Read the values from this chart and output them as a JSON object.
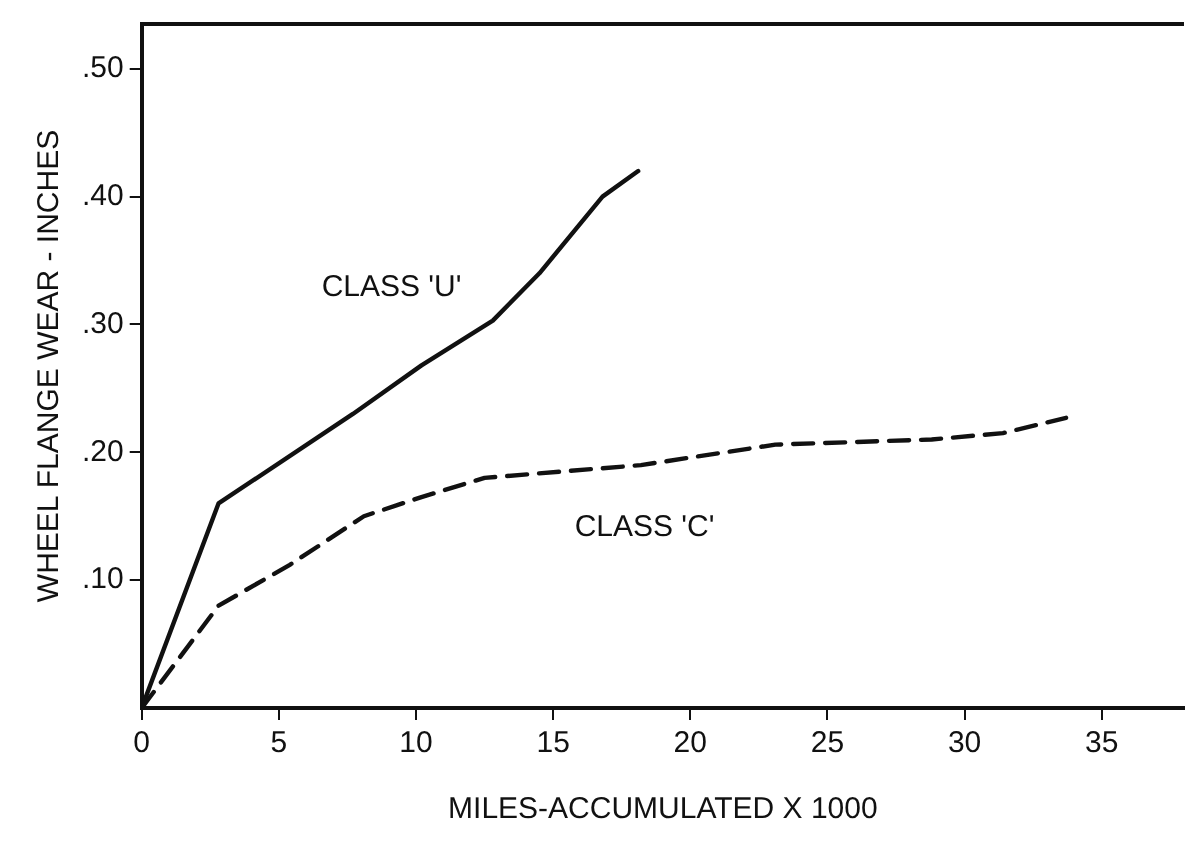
{
  "chart_data": {
    "type": "line",
    "xlabel": "MILES-ACCUMULATED X 1000",
    "ylabel": "WHEEL FLANGE WEAR - INCHES",
    "xlim": [
      0,
      38
    ],
    "xticks": [
      0,
      5,
      10,
      15,
      20,
      25,
      30,
      35
    ],
    "ylim": [
      0,
      0.535
    ],
    "yticks": [
      {
        "value": 0.1,
        "label": ".10"
      },
      {
        "value": 0.2,
        "label": ".20"
      },
      {
        "value": 0.3,
        "label": ".30"
      },
      {
        "value": 0.4,
        "label": ".40"
      },
      {
        "value": 0.5,
        "label": ".50"
      }
    ],
    "grid": false,
    "legend": false,
    "marker": "none",
    "series": [
      {
        "name": "CLASS 'U'",
        "color": "#111111",
        "line_style": "solid",
        "x": [
          0,
          2.8,
          7.7,
          10.2,
          12.8,
          14.5,
          16.8,
          18.1
        ],
        "values": [
          0,
          0.16,
          0.23,
          0.268,
          0.303,
          0.34,
          0.4,
          0.42
        ]
      },
      {
        "name": "CLASS 'C'",
        "color": "#111111",
        "line_style": "dashed",
        "x": [
          0,
          2.8,
          5.4,
          8.1,
          10.2,
          12.5,
          18.2,
          23.1,
          28.8,
          31.4,
          33.7
        ],
        "values": [
          0,
          0.08,
          0.112,
          0.15,
          0.165,
          0.18,
          0.19,
          0.206,
          0.21,
          0.215,
          0.227
        ]
      }
    ]
  }
}
